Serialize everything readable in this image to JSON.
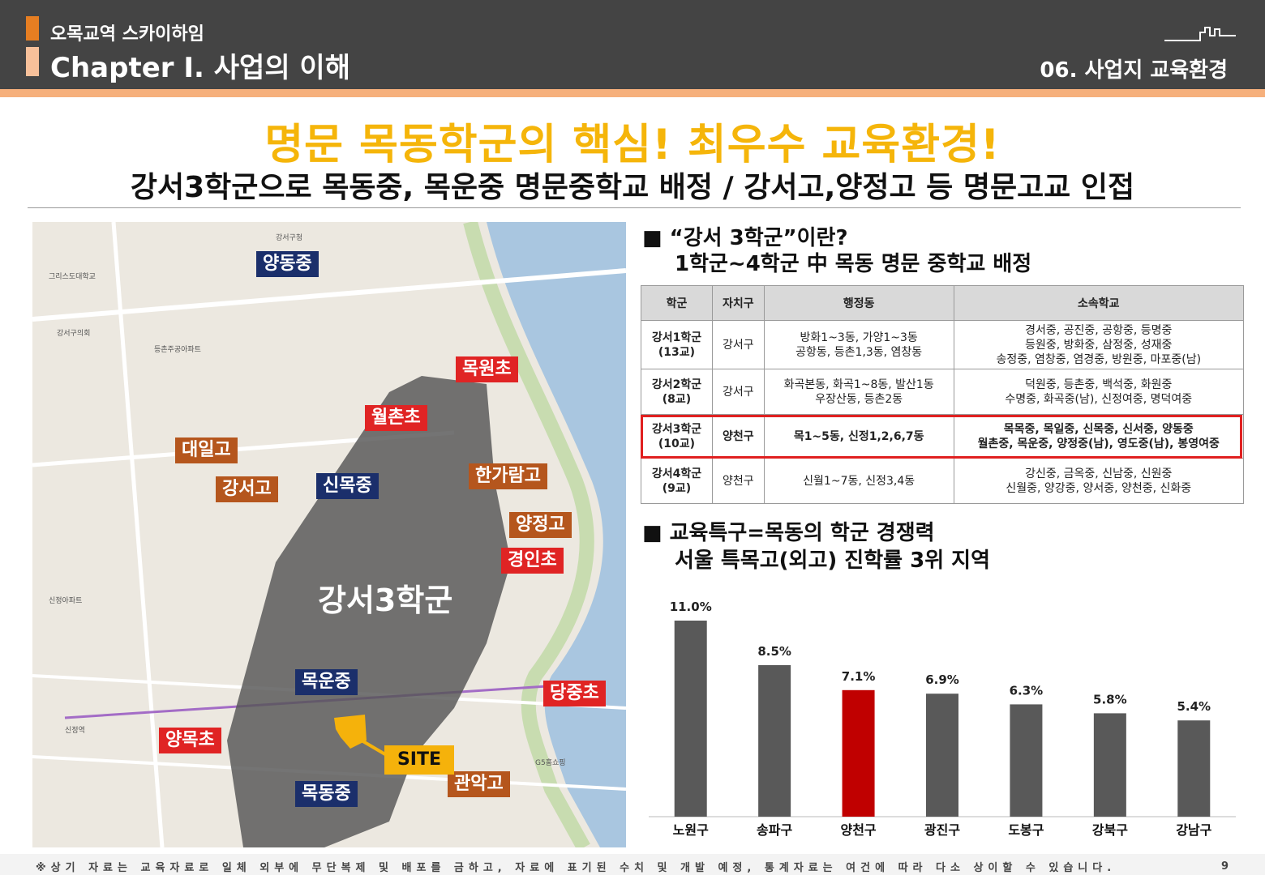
{
  "header": {
    "project": "오목교역 스카이하임",
    "chapter": "Chapter Ⅰ. 사업의 이해",
    "section": "06. 사업지 교육환경"
  },
  "title": "명문 목동학군의 핵심! 최우수 교육환경!",
  "subtitle": "강서3학군으로 목동중, 목운중 명문중학교 배정 / 강서고,양정고 등 명문고교 인접",
  "map": {
    "district_label": "강서3학군",
    "site_label": "SITE",
    "schools": [
      {
        "name": "양동중",
        "kind": "blue"
      },
      {
        "name": "목원초",
        "kind": "red"
      },
      {
        "name": "월촌초",
        "kind": "red"
      },
      {
        "name": "대일고",
        "kind": "brown"
      },
      {
        "name": "강서고",
        "kind": "brown"
      },
      {
        "name": "신목중",
        "kind": "blue"
      },
      {
        "name": "한가람고",
        "kind": "brown"
      },
      {
        "name": "양정고",
        "kind": "brown"
      },
      {
        "name": "경인초",
        "kind": "red"
      },
      {
        "name": "목운중",
        "kind": "blue"
      },
      {
        "name": "당중초",
        "kind": "red"
      },
      {
        "name": "양목초",
        "kind": "red"
      },
      {
        "name": "관악고",
        "kind": "brown"
      },
      {
        "name": "목동중",
        "kind": "blue"
      }
    ],
    "colors": {
      "red": "#e02424",
      "blue": "#1b2f6b",
      "brown": "#b5561d",
      "site": "#f5b20b"
    }
  },
  "section1": {
    "line1": "■ “강서 3학군”이란?",
    "line2": "1학군~4학군 中 목동 명문 중학교 배정"
  },
  "table": {
    "headers": [
      "학군",
      "자치구",
      "행정동",
      "소속학교"
    ],
    "rows": [
      {
        "group": "강서1학군",
        "count": "(13교)",
        "gu": "강서구",
        "dong1": "방화1~3동, 가양1~3동",
        "dong2": "공항동, 등촌1,3동, 염창동",
        "schools1": "경서중, 공진중, 공항중, 등명중",
        "schools2": "등원중, 방화중, 삼정중, 성재중",
        "schools3": "송정중, 염창중, 염경중, 방원중, 마포중(남)"
      },
      {
        "group": "강서2학군",
        "count": "(8교)",
        "gu": "강서구",
        "dong1": "화곡본동, 화곡1~8동, 발산1동",
        "dong2": "우장산동, 등촌2동",
        "schools1": "덕원중, 등촌중, 백석중, 화원중",
        "schools2": "수명중, 화곡중(남), 신정여중, 명덕여중"
      },
      {
        "group": "강서3학군",
        "count": "(10교)",
        "gu": "양천구",
        "dong1": "목1~5동, 신정1,2,6,7동",
        "schools1": "목목중, 목일중, 신목중, 신서중, 양동중",
        "schools2": "월촌중, 목운중, 양정중(남), 영도중(남), 봉영여중"
      },
      {
        "group": "강서4학군",
        "count": "(9교)",
        "gu": "양천구",
        "dong1": "신월1~7동, 신정3,4동",
        "schools1": "강신중, 금옥중, 신남중, 신원중",
        "schools2": "신월중, 양강중, 양서중, 양천중, 신화중"
      }
    ],
    "highlight_color": "#e02020"
  },
  "section2": {
    "line1": "■ 교육특구=목동의 학군 경쟁력",
    "line2": "서울 특목고(외고) 진학률 3위 지역"
  },
  "chart_data": {
    "type": "bar",
    "categories": [
      "노원구",
      "송파구",
      "양천구",
      "광진구",
      "도봉구",
      "강북구",
      "강남구"
    ],
    "values": [
      11.0,
      8.5,
      7.1,
      6.9,
      6.3,
      5.8,
      5.4
    ],
    "value_labels": [
      "11.0%",
      "8.5%",
      "7.1%",
      "6.9%",
      "6.3%",
      "5.8%",
      "5.4%"
    ],
    "highlight_index": 2,
    "bar_color": "#595959",
    "highlight_color": "#c00000",
    "ylim": [
      0,
      12
    ],
    "grid": false
  },
  "footer": {
    "note": "※상기 자료는 교육자료로 일체 외부에 무단복제 및 배포를 금하고, 자료에 표기된 수치 및 개발 예정, 통계자료는 여건에 따라 다소 상이할 수 있습니다.",
    "page": "9"
  }
}
